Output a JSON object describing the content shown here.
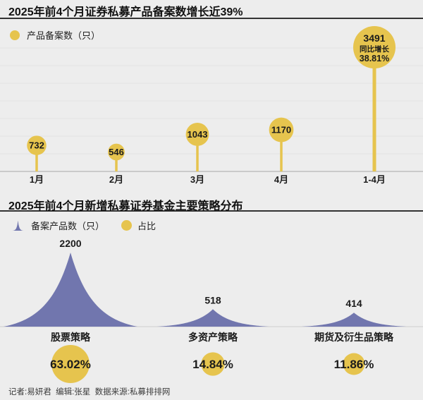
{
  "page": {
    "footer": "记者:易妍君  编辑:张星  数据来源:私募排排网"
  },
  "section1": {
    "title": "2025年前4个月证券私募产品备案数增长近39%",
    "legend_label": "产品备案数（只）"
  },
  "section2": {
    "title": "2025年前4个月新增私募证券基金主要策略分布",
    "legend_peak_label": "备案产品数（只）",
    "legend_circle_label": "占比"
  },
  "colors": {
    "gold": "#e6c44e",
    "purple": "#7176ae",
    "grid": "#e2e2e2",
    "axis": "#b5b5b5",
    "baseline2": "#cfcfcf",
    "text": "#1b1b1b"
  },
  "chart_data": [
    {
      "type": "lollipop",
      "title": "2025年前4个月证券私募产品备案数增长近39%",
      "legend": [
        "产品备案数（只）"
      ],
      "legend_position": "top-left",
      "categories": [
        "1月",
        "2月",
        "3月",
        "4月",
        "1-4月"
      ],
      "values": [
        732,
        546,
        1043,
        1170,
        3491
      ],
      "annotated_index": 4,
      "annotation_label": "同比增长",
      "annotation_percent": "38.81%",
      "ylim": [
        0,
        3600
      ],
      "grid": true,
      "xlabel": "",
      "ylabel": "产品备案数（只）"
    },
    {
      "type": "area",
      "title": "2025年前4个月新增私募证券基金主要策略分布",
      "legend": [
        "备案产品数（只）",
        "占比"
      ],
      "legend_position": "top-left",
      "categories": [
        "股票策略",
        "多资产策略",
        "期货及衍生品策略"
      ],
      "series": [
        {
          "name": "备案产品数（只）",
          "values": [
            2200,
            518,
            414
          ]
        },
        {
          "name": "占比",
          "values": [
            "63.02%",
            "14.84%",
            "11.86%"
          ]
        }
      ],
      "grid": false,
      "xlabel": "",
      "ylabel": ""
    }
  ]
}
